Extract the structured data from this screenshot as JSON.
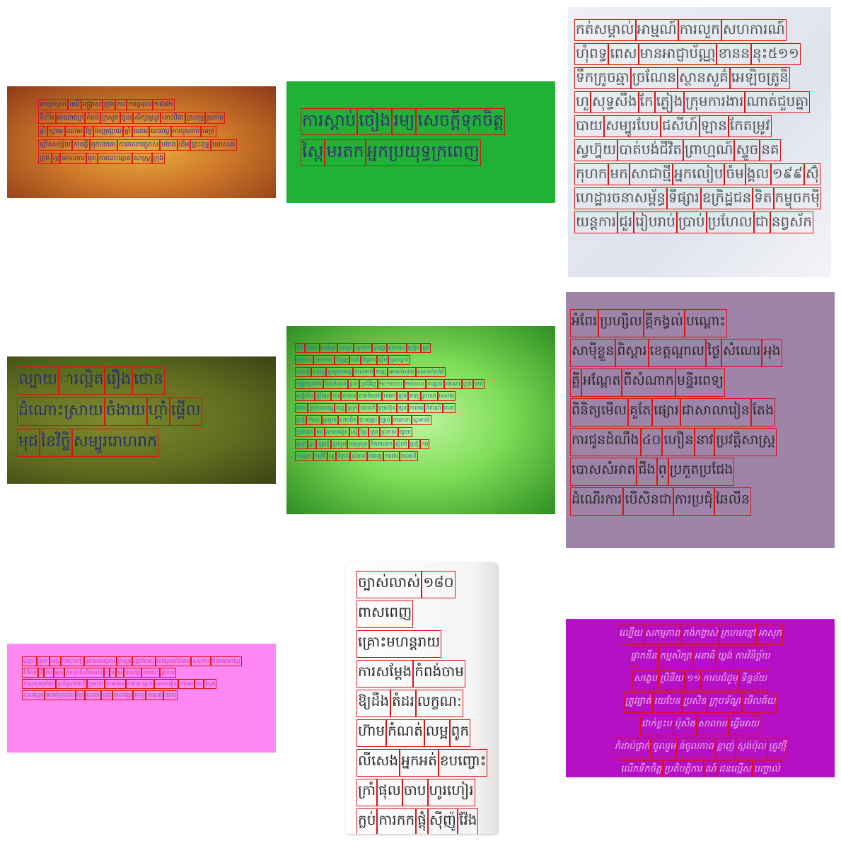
{
  "samples": [
    {
      "id": "sample-1",
      "lines": [
        [
          "ពាក្យស្លោក",
          "ឈើ",
          "អង្ក្រាស",
          "ក្រុង",
          "ការ",
          "ការក្ខមុល",
          "១៩៨២"
        ],
        [
          "ទីតាំង",
          "អាណាចក្រ",
          "កំពង់",
          "ក្រសួង",
          "ចូល",
          "សិក្សាស្រូវ",
          "ទោះបីជា",
          "ព្រះពុទ្ធ",
          "រូបភាព"
        ],
        [
          "ឆ្នាំ",
          "ស្វាយ",
          "យោធា",
          "ថ្ងៃ",
          "ចេញផ្សាយ",
          "ឆ្នាំ",
          "ឈាម",
          "មេឃាប្ល",
          "ការបួសរាប់",
          "មេត្រ"
        ],
        [
          "ច្រើនសង្ស័យ",
          "ការធ្វើ",
          "ពួកយោធា",
          "ការការពារក្ខូរាស",
          "បងាង",
          "ដើម",
          "ព្រះពុទ្ធ",
          "ឃោសនា"
        ],
        [
          "ក្រុង",
          "ល្អ",
          "គោលការ",
          "ផុត",
          "ការបោះឆ្នោត",
          "សាស្ត្រ",
          "ក្រុង"
        ]
      ]
    },
    {
      "id": "sample-2",
      "lines": [
        [
          "ការស្ដាប់",
          "ចៀង",
          "រម្យ",
          "សេចក្ដីទុកចិត្ត"
        ],
        [
          "ស្ពៃ",
          "មរតក",
          "អ្នកប្រយុទ្ធក្រពេញ"
        ]
      ]
    },
    {
      "id": "sample-3",
      "lines": [
        [
          "កត់សម្គាល់",
          "អាម្មណ៍",
          "ការលួក",
          "សហការណ៍"
        ],
        [
          "ហុំពទ្ធ",
          "ពេស",
          "មានអាជ្ញាប័ណ្ណ",
          "ខានន",
          "នុះ៥១១"
        ],
        [
          "ទឹកក្រូចឆ្មា",
          "ច្រណែន",
          "ស្ថានសួគ៌",
          "អេឡិចត្រូនិ"
        ],
        [
          "ហួ",
          "សុទ្ធសឹង",
          "កែ",
          "ភ្លៀង",
          "ក្រុមការងារ",
          "ណាត់ជួបគ្នា"
        ],
        [
          "បាយ",
          "សម្បូរបែប",
          "ជសីហ៍",
          "ឡាន",
          "កែតម្រូវ"
        ],
        [
          "ស្វហ្វ៊ុយ",
          "បាត់បង់ជីវិត",
          "ព្រាហ្មណ៍",
          "ស្ទួច",
          "នគ"
        ],
        [
          "កុហក",
          "មក",
          "សាជាថ្មី",
          "អ្នកលៀប",
          "ចំម",
          "ង្គល",
          "១៩៩",
          "ស៊ុំ"
        ],
        [
          "ហេដ្ឋារចនាសម្ព័ន្ធ",
          "ទីផ្សារ",
          "ឧក្រិដ្ឋជន",
          "ទិត",
          "កម្ចុចកម៉ី"
        ],
        [
          "យន្តការ",
          "ជួរ",
          "រៀបរាប់",
          "ប្រាប់",
          "ប្រហែល",
          "ជា",
          "នព្វស័ក"
        ]
      ]
    },
    {
      "id": "sample-4",
      "lines": [
        [
          "ល្បាយ",
          "ារល្អិត",
          "រឿង",
          "ថោន"
        ],
        [
          "ដំណោះស្រាយ",
          "ចំងាយ",
          "ហ្គាំ",
          "ផ្ដើល"
        ],
        [
          "មុជ",
          "ខៃវិច្ចិ",
          "សម្បូររោហរាក"
        ]
      ]
    },
    {
      "id": "sample-5",
      "lines": [
        [
          "នឹង",
          "ប៉ុន្មាន",
          "អនុវត្តន៍",
          "សាត្រា",
          "ស្ថាបនា",
          "ប្រាថ្នា",
          "ព្យាបាល",
          "ត្រៀម",
          "ត្រូវ"
        ],
        [
          "ប្រទេស",
          "សហភាព",
          "ជំនួញ",
          "បាតិ",
          "កិច្ចការ",
          "ផ្តើម",
          "ចូលស្ដាប់"
        ],
        [
          "សាមគ្គី",
          "អនុវត្ត",
          "អ្នកម្ដាយអង្គ",
          "កាលទាក់",
          "ទាញ",
          "គោលបំណង",
          "សាលាកំពង់ធំ"
        ],
        [
          "កម្ពុជាប្រឆាំង",
          "ដែនកំណត់",
          "ផ្ដល់",
          "ប្រជុំវិញ",
          "២០១០០០",
          "២៨០០០",
          "ការផ្ដល់",
          "សំណេរ",
          "ក្រុង",
          "បាត់"
        ],
        [
          "សន្និសីទ",
          "ម៉ូដែល",
          "ការ",
          "សាលា",
          "បាត់កំណត់",
          "ទេវតា",
          "ក្រុង",
          "ពាក្យ",
          "រូបភាព",
          "ទេសចរ"
        ],
        [
          "ពេល",
          "ប្រជាពលរដ្ឋ",
          "ខេត្ត",
          "ស្រុក",
          "ជនជាតិ",
          "ក្រុមហ៊ុន",
          "ផ្សារ",
          "ការងារ",
          "ពិព័រណ៍",
          "ធានា"
        ],
        [
          "ប្រជុំ",
          "ការចុះ",
          "ប្រមូល",
          "សមាជិក",
          "ចុះឈ្មោះ",
          "ច្បាប់",
          "ការធានា",
          "ស្វាគមន៍"
        ],
        [
          "ប្រជាជន",
          "ការ",
          "សាលារៀន",
          "ស្មើ",
          "ខ្មែរ",
          "ក្រុង",
          "ប្រកាស",
          "ផ្សាយ"
        ],
        [
          "ស្រុក",
          "ផ្ទះ",
          "ផ្សារថ្មី",
          "ចូលរួម",
          "ការប្រកួត",
          "ពិភពលោក",
          "រៀបចំ",
          "ប្រជុំ",
          "ការ"
        ],
        [
          "ទស្សនា",
          "កម្មវិធី",
          "រដ្ឋ",
          "ទីក្រុង",
          "សំខាន់",
          "បំពេញ",
          "ការងារ",
          "រាជធានី"
        ]
      ]
    },
    {
      "id": "sample-6",
      "lines": [
        [
          "អំពែរ",
          "ប្រហ្សិល",
          "គ្គីកង្វល់",
          "បណ្ដោះ"
        ],
        [
          "សាម៉ីខ្លួន",
          "ពិស្ដារ",
          "ខេត្តណ្តាល",
          "ថ្ងៃ",
          "សំណេរ",
          "អុង"
        ],
        [
          "គ្គី",
          "អណ្ដែត",
          "ពីសំណាក",
          "មន្ទីរពេទ្យ"
        ],
        [
          "ពិនិត្យមើល",
          "គួតែ",
          "ផ្សោរ",
          "ជាសាលារៀន",
          "តែង"
        ],
        [
          "ការជូនដំណឹង",
          "៤០",
          "ហឿន",
          "នាវ",
          "ប្រវត្តិសាស្ត្រ"
        ],
        [
          "បោសសំអាត",
          "ជីង",
          "ព្",
          "ប្រកួតប្រជែង"
        ],
        [
          "ដំណើរការ",
          "បើសិនជា",
          "ការប្រជុំ",
          "ឆៃលីន"
        ]
      ]
    },
    {
      "id": "sample-7",
      "lines": [
        [
          "ឈ្មោះ",
          "ស្រុក",
          "ខេត្ត",
          "ការចុះបញ្ជី",
          "ប្រជាពលរដ្ឋការ",
          "ក្រសួង",
          "រដ្ឋាភិបាល",
          "ការផ្សាយព័ត៌មាន",
          "សហការ",
          "ពិភពលោកខ្មែរ"
        ],
        [
          "ពិធីការ",
          "ទី",
          "ការ",
          "ផ្សារ",
          "ការជូនដំណឹងរបស់",
          "ក",
          "ខ",
          "ឃ",
          "ពេលថ្ងៃ",
          "ការដោះ",
          "ស្រាយ"
        ],
        [
          "ការប្រកួតប្រជែង",
          "ប្រព័ន្ធអប់រំជាតិ",
          "ក្រុមការ",
          "ការលោក",
          "ការបោះឆ្នោត",
          "សាលារៀន",
          "ការងារ",
          "ការ",
          "ស្វែង"
        ],
        [
          "ការបរិច្ឆេទ",
          "មហាវិទ្យាល័យ",
          "ខ្មែរ",
          "សាលា",
          "ប្រជុំ",
          "ភាសាខ្មែរ",
          "ពាក្យ",
          "ការប្រជុំ",
          "ផ្សាយ"
        ]
      ]
    },
    {
      "id": "sample-8",
      "lines": [
        [
          "ច្បាស់លាស់",
          "១៨០"
        ],
        [
          "ពាសពេញ"
        ],
        [
          "គ្រោះមហន្តរាយ"
        ],
        [
          "ការសម្ដែង",
          "កំពង់ចាម"
        ],
        [
          "ឱ្យដឹង",
          "តំដរ",
          "លក្ខណ:"
        ],
        [
          "ហ៊ាម",
          "កំណត់",
          "លម្អ",
          "ពូក"
        ],
        [
          "លីសេង",
          "អ្នកអត់",
          "ខបញ្ចោះ"
        ],
        [
          "ក្រាំ",
          "ផុល",
          "ចាប",
          "ហូរហៀរ"
        ],
        [
          "ក្លប់",
          "ការកក",
          "ផ្តុំ",
          "ស៊ីញ៉ូ",
          "វ៉ែង"
        ]
      ]
    },
    {
      "id": "sample-9",
      "lines": [
        [
          "ល្បើយ",
          "សកម្មភាព",
          "កង់កង្វាស់",
          "ក្រហមខ្មៅ",
          "អាសុភ"
        ],
        [
          "ផ្ទាកខីន",
          "កម្មសិក្សា",
          "អនាធិ",
          "ឃ្លង់",
          "ការវិនិច្ឆ័យ"
        ],
        [
          "សង្ខេប",
          "ប្រិនីយ",
          "១១",
          "កាលជំជូមុ",
          "ទិន្នន័យ"
        ],
        [
          "ត្រូវផ្ទាត់",
          "យេបែន",
          "ប្រសិន",
          "ក្រុបទ័ណ្ឌ",
          "មើលផ៍យ"
        ],
        [
          "ជាក់ខ្លះប",
          "ប៉ុសិត",
          "សាលាម",
          "ធ្វើអោយ"
        ],
        [
          "កំដាប់ផ្ទាក់",
          "ចូលរួម",
          "ន់ចូលកាព",
          "ខ្លាញ់",
          "ស្ដង់ប៉ុល",
          "ត្រូវថ្មី"
        ],
        [
          "លើកទឹកចិត្ត",
          "ប្រតិបត្តិការ",
          "ណ៍",
          "ជនល្មើស",
          "បញ្ចាល់"
        ]
      ]
    }
  ]
}
